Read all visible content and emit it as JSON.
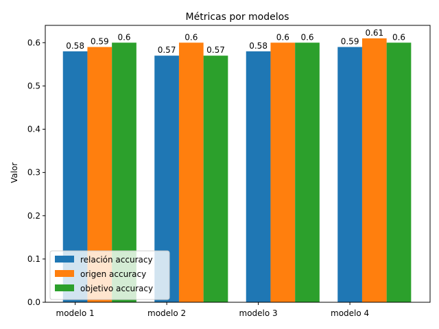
{
  "chart_data": {
    "type": "bar",
    "title": "Métricas por modelos",
    "xlabel": "",
    "ylabel": "Valor",
    "categories": [
      "modelo 1",
      "modelo 2",
      "modelo 3",
      "modelo 4"
    ],
    "series": [
      {
        "name": "relación accuracy",
        "values": [
          0.58,
          0.57,
          0.58,
          0.59
        ],
        "color": "#1f77b4"
      },
      {
        "name": "origen accuracy",
        "values": [
          0.59,
          0.6,
          0.6,
          0.61
        ],
        "color": "#ff7f0e"
      },
      {
        "name": "objetivo accuracy",
        "values": [
          0.6,
          0.57,
          0.6,
          0.6
        ],
        "color": "#2ca02c"
      }
    ],
    "data_labels": [
      [
        "0.58",
        "0.57",
        "0.58",
        "0.59"
      ],
      [
        "0.59",
        "0.6",
        "0.6",
        "0.61"
      ],
      [
        "0.6",
        "0.57",
        "0.6",
        "0.6"
      ]
    ],
    "ylim": [
      0,
      0.64
    ],
    "yticks": [
      0.0,
      0.1,
      0.2,
      0.3,
      0.4,
      0.5,
      0.6
    ],
    "ytick_labels": [
      "0.0",
      "0.1",
      "0.2",
      "0.3",
      "0.4",
      "0.5",
      "0.6"
    ],
    "grid": false,
    "legend_position": "lower-left"
  }
}
